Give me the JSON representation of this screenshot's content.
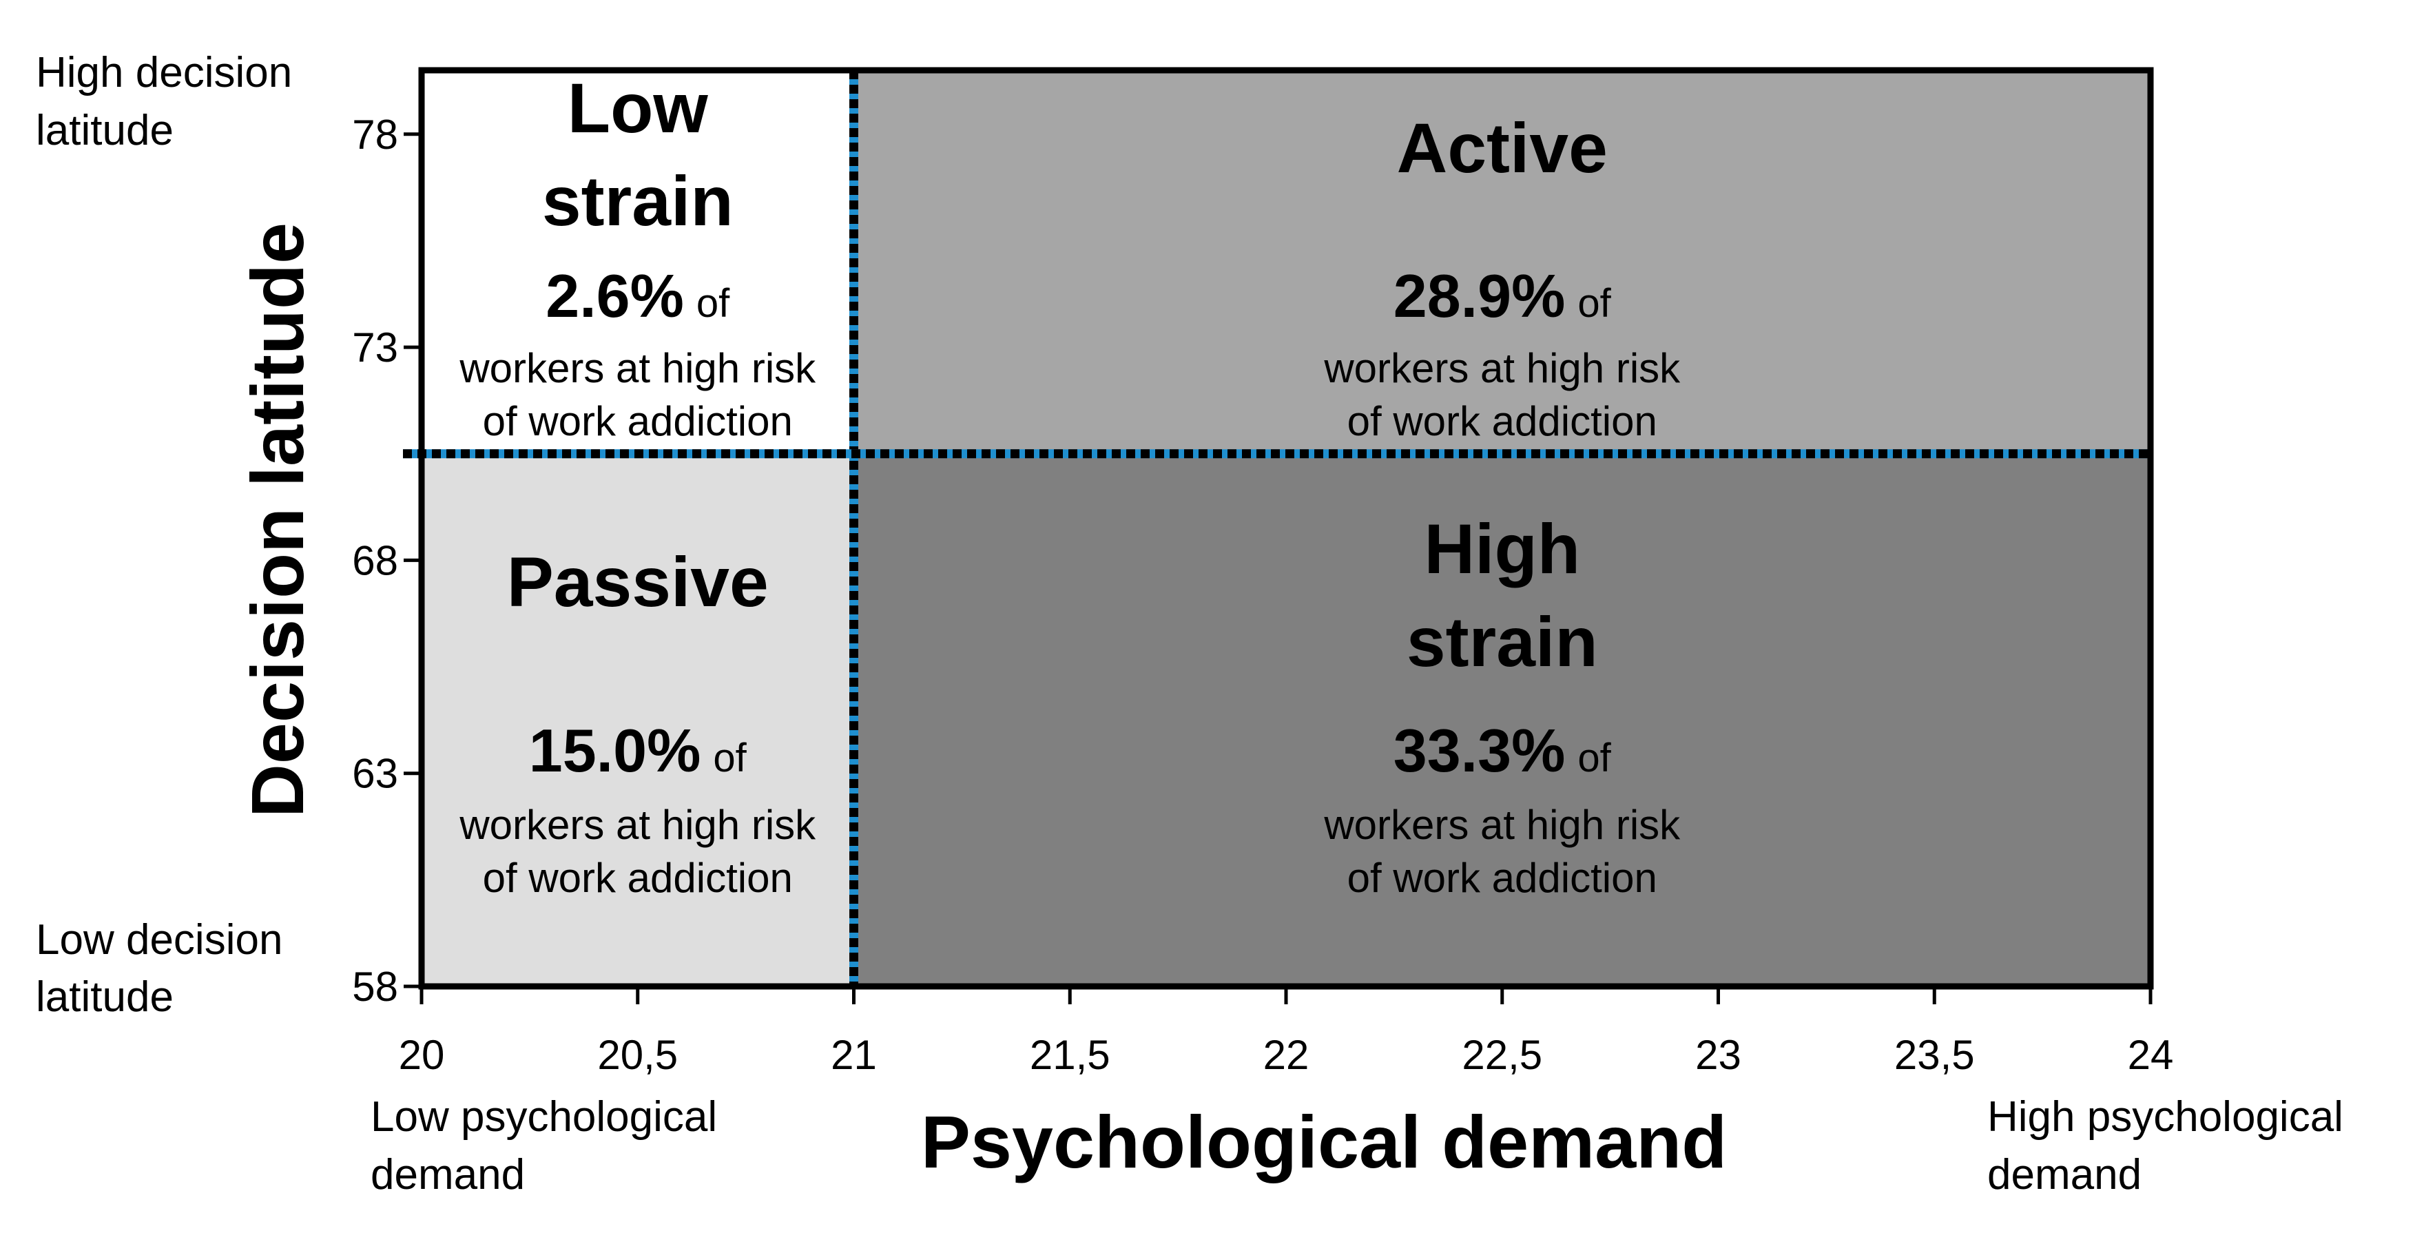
{
  "chart_data": {
    "type": "scatter",
    "title": "",
    "xlabel": "Psychological demand",
    "ylabel": "Decision latitude",
    "xlim": [
      20,
      24
    ],
    "ylim": [
      58,
      79.5
    ],
    "x_ticks": [
      20,
      20.5,
      21,
      21.5,
      22,
      22.5,
      23,
      23.5,
      24
    ],
    "x_tick_labels": [
      "20",
      "20,5",
      "21",
      "21,5",
      "22",
      "22,5",
      "23",
      "23,5",
      "24"
    ],
    "y_ticks": [
      58,
      63,
      68,
      73,
      78
    ],
    "y_tick_labels": [
      "58",
      "63",
      "68",
      "73",
      "78"
    ],
    "x_split": 21,
    "y_split": 70.5,
    "axis_extremes": {
      "y_high": [
        "High decision",
        "latitude"
      ],
      "y_low": [
        "Low decision",
        "latitude"
      ],
      "x_low": [
        "Low psychological",
        "demand"
      ],
      "x_high": [
        "High psychological",
        "demand"
      ]
    },
    "quadrants": [
      {
        "id": "low-strain",
        "name_lines": [
          "Low",
          "strain"
        ],
        "pct": "2.6%",
        "of": "of",
        "desc_lines": [
          "workers at high risk",
          "of work addiction"
        ],
        "value": 2.6,
        "x_range": [
          20,
          21
        ],
        "y_range": [
          70.5,
          79.5
        ],
        "color": "#ffffff"
      },
      {
        "id": "active",
        "name_lines": [
          "Active"
        ],
        "pct": "28.9%",
        "of": "of",
        "desc_lines": [
          "workers at high risk",
          "of work addiction"
        ],
        "value": 28.9,
        "x_range": [
          21,
          24
        ],
        "y_range": [
          70.5,
          79.5
        ],
        "color": "#a6a6a6"
      },
      {
        "id": "passive",
        "name_lines": [
          "Passive"
        ],
        "pct": "15.0%",
        "of": "of",
        "desc_lines": [
          "workers at high risk",
          "of work addiction"
        ],
        "value": 15.0,
        "x_range": [
          20,
          21
        ],
        "y_range": [
          58,
          70.5
        ],
        "color": "#dedede"
      },
      {
        "id": "high-strain",
        "name_lines": [
          "High",
          "strain"
        ],
        "pct": "33.3%",
        "of": "of",
        "desc_lines": [
          "workers at high risk",
          "of work addiction"
        ],
        "value": 33.3,
        "x_range": [
          21,
          24
        ],
        "y_range": [
          58,
          70.5
        ],
        "color": "#808080"
      }
    ],
    "grid": false,
    "divider_color": "#1f8fcf"
  }
}
